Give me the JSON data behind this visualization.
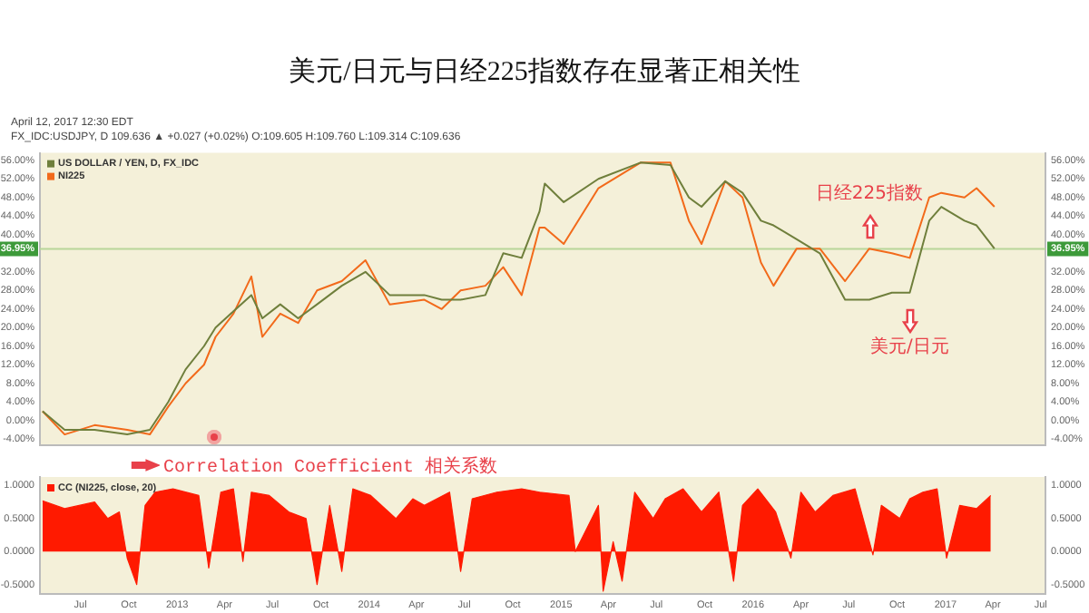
{
  "chart_data": [
    {
      "type": "line",
      "title": "美元/日元与日经225指数存在显著正相关性",
      "subtitle": "April 12, 2017 12:30 EDT",
      "x": [
        "2012-04-20",
        "2012-06-01",
        "2012-07-28",
        "2012-09-28",
        "2012-11-10",
        "2012-12-15",
        "2013-01-17",
        "2013-02-21",
        "2013-03-15",
        "2013-04-18",
        "2013-05-22",
        "2013-06-12",
        "2013-07-16",
        "2013-08-19",
        "2013-09-24",
        "2013-11-10",
        "2013-12-25",
        "2014-02-09",
        "2014-04-16",
        "2014-05-19",
        "2014-06-24",
        "2014-08-10",
        "2014-09-13",
        "2014-10-18",
        "2014-11-21",
        "2014-12-01",
        "2015-01-06",
        "2015-03-13",
        "2015-06-01",
        "2015-07-28",
        "2015-09-01",
        "2015-09-25",
        "2015-11-09",
        "2015-12-12",
        "2016-01-16",
        "2016-02-09",
        "2016-03-24",
        "2016-05-07",
        "2016-06-24",
        "2016-08-09",
        "2016-09-21",
        "2016-10-25",
        "2016-12-01",
        "2016-12-24",
        "2017-02-06",
        "2017-03-01",
        "2017-04-04"
      ],
      "series": [
        {
          "name": "US DOLLAR / YEN, D, FX_IDC",
          "color": "#6f7f3c",
          "values": [
            2,
            -2,
            -2,
            -3,
            -2,
            4,
            11,
            16,
            20,
            23.5,
            27,
            22,
            25,
            22,
            25,
            29,
            32,
            27,
            27,
            26,
            26,
            27,
            36,
            35,
            45,
            51,
            47,
            52,
            55.5,
            55,
            48,
            46,
            51.5,
            49,
            43,
            42,
            39,
            36,
            26,
            26,
            27.5,
            27.5,
            43,
            46,
            43,
            42,
            37
          ]
        },
        {
          "name": "NI225",
          "color": "#f26a1b",
          "values": [
            2,
            -3,
            -1,
            -2,
            -3,
            3,
            8,
            12,
            18,
            23,
            31,
            18,
            23,
            21,
            28,
            30,
            34.5,
            25,
            26,
            24,
            28,
            29,
            33,
            27,
            41.5,
            41.5,
            38,
            50,
            55.5,
            55.5,
            43,
            38,
            51.5,
            48,
            34,
            29,
            37,
            37,
            30,
            37,
            36,
            35,
            48,
            49,
            48,
            50,
            46
          ]
        }
      ],
      "xlim": [
        "2012-04-15",
        "2017-07-10"
      ],
      "ylim": [
        -5.4,
        57.6
      ],
      "yticks": [
        {
          "value": -4,
          "label": "-4.00%"
        },
        {
          "value": 0,
          "label": "0.00%"
        },
        {
          "value": 4,
          "label": "4.00%"
        },
        {
          "value": 8,
          "label": "8.00%"
        },
        {
          "value": 12,
          "label": "12.00%"
        },
        {
          "value": 16,
          "label": "16.00%"
        },
        {
          "value": 20,
          "label": "20.00%"
        },
        {
          "value": 24,
          "label": "24.00%"
        },
        {
          "value": 28,
          "label": "28.00%"
        },
        {
          "value": 32,
          "label": "32.00%"
        },
        {
          "value": 40,
          "label": "40.00%"
        },
        {
          "value": 44,
          "label": "44.00%"
        },
        {
          "value": 48,
          "label": "48.00%"
        },
        {
          "value": 52,
          "label": "52.00%"
        },
        {
          "value": 56,
          "label": "56.00%"
        }
      ],
      "y2lim": [
        -5.4,
        57.6
      ],
      "y2ticks": [
        {
          "value": -4,
          "label": "-4.00%"
        },
        {
          "value": 0,
          "label": "0.00%"
        },
        {
          "value": 4,
          "label": "4.00%"
        },
        {
          "value": 8,
          "label": "8.00%"
        },
        {
          "value": 12,
          "label": "12.00%"
        },
        {
          "value": 16,
          "label": "16.00%"
        },
        {
          "value": 20,
          "label": "20.00%"
        },
        {
          "value": 24,
          "label": "24.00%"
        },
        {
          "value": 28,
          "label": "28.00%"
        },
        {
          "value": 32,
          "label": "32.00%"
        },
        {
          "value": 40,
          "label": "40.00%"
        },
        {
          "value": 44,
          "label": "44.00%"
        },
        {
          "value": 48,
          "label": "48.00%"
        },
        {
          "value": 52,
          "label": "52.00%"
        },
        {
          "value": 56,
          "label": "56.00%"
        }
      ],
      "tick_labels": "y",
      "ref_lines": [
        {
          "axis": "y",
          "value": 36.95,
          "label": "36.95%",
          "color": "#b8d69a"
        }
      ],
      "legend": "top left",
      "annotations": [
        "FX_IDC:USDJPY, D 109.636 ▲ +0.027 (+0.02%) O:109.605 H:109.760 L:109.314 C:109.636",
        {
          "text": "日经225指数",
          "x": "2016-08-09",
          "y": 37
        },
        {
          "text": "美元/日元",
          "x": "2016-10-25",
          "y": 27.5
        }
      ]
    },
    {
      "type": "area",
      "x": [
        "2012-04-20",
        "2012-06-01",
        "2012-07-28",
        "2012-08-22",
        "2012-09-13",
        "2012-09-28",
        "2012-10-16",
        "2012-11-01",
        "2012-11-20",
        "2012-12-24",
        "2013-02-11",
        "2013-03-02",
        "2013-03-25",
        "2013-04-18",
        "2013-05-06",
        "2013-05-22",
        "2013-06-25",
        "2013-08-01",
        "2013-09-03",
        "2013-09-24",
        "2013-10-18",
        "2013-11-10",
        "2013-12-01",
        "2014-01-04",
        "2014-02-21",
        "2014-03-25",
        "2014-04-16",
        "2014-06-03",
        "2014-06-24",
        "2014-07-16",
        "2014-09-01",
        "2014-10-18",
        "2014-11-21",
        "2015-01-16",
        "2015-01-28",
        "2015-02-19",
        "2015-03-13",
        "2015-03-22",
        "2015-04-10",
        "2015-04-27",
        "2015-05-21",
        "2015-06-25",
        "2015-07-18",
        "2015-08-21",
        "2015-09-25",
        "2015-10-28",
        "2015-11-25",
        "2015-12-12",
        "2016-01-10",
        "2016-02-13",
        "2016-03-13",
        "2016-04-01",
        "2016-04-28",
        "2016-06-01",
        "2016-07-13",
        "2016-08-16",
        "2016-09-01",
        "2016-10-06",
        "2016-10-25",
        "2016-11-19",
        "2016-12-16",
        "2017-01-03",
        "2017-01-28",
        "2017-03-01",
        "2017-03-28"
      ],
      "series": [
        {
          "name": "CC (NI225, close, 20)",
          "color": "#ff1a00",
          "values": [
            0.77,
            0.65,
            0.75,
            0.5,
            0.6,
            -0.1,
            -0.5,
            0.7,
            0.9,
            0.95,
            0.85,
            -0.25,
            0.9,
            0.95,
            -0.15,
            0.9,
            0.85,
            0.6,
            0.5,
            -0.5,
            0.7,
            -0.3,
            0.95,
            0.85,
            0.5,
            0.8,
            0.7,
            0.9,
            -0.3,
            0.8,
            0.9,
            0.95,
            0.9,
            0.85,
            0,
            0.35,
            0.7,
            -0.6,
            0.15,
            -0.45,
            0.9,
            0.5,
            0.8,
            0.95,
            0.6,
            0.9,
            -0.45,
            0.7,
            0.95,
            0.6,
            -0.1,
            0.9,
            0.6,
            0.85,
            0.95,
            -0.05,
            0.7,
            0.5,
            0.8,
            0.9,
            0.95,
            -0.1,
            0.7,
            0.65,
            0.85
          ]
        }
      ],
      "xlim": [
        "2012-04-15",
        "2017-07-10"
      ],
      "xticks": [
        {
          "value": "2012-07-01",
          "label": "Jul"
        },
        {
          "value": "2012-10-01",
          "label": "Oct"
        },
        {
          "value": "2013-01-01",
          "label": "2013"
        },
        {
          "value": "2013-04-01",
          "label": "Apr"
        },
        {
          "value": "2013-07-01",
          "label": "Jul"
        },
        {
          "value": "2013-10-01",
          "label": "Oct"
        },
        {
          "value": "2014-01-01",
          "label": "2014"
        },
        {
          "value": "2014-04-01",
          "label": "Apr"
        },
        {
          "value": "2014-07-01",
          "label": "Jul"
        },
        {
          "value": "2014-10-01",
          "label": "Oct"
        },
        {
          "value": "2015-01-01",
          "label": "2015"
        },
        {
          "value": "2015-04-01",
          "label": "Apr"
        },
        {
          "value": "2015-07-01",
          "label": "Jul"
        },
        {
          "value": "2015-10-01",
          "label": "Oct"
        },
        {
          "value": "2016-01-01",
          "label": "2016"
        },
        {
          "value": "2016-04-01",
          "label": "Apr"
        },
        {
          "value": "2016-07-01",
          "label": "Jul"
        },
        {
          "value": "2016-10-01",
          "label": "Oct"
        },
        {
          "value": "2017-01-01",
          "label": "2017"
        },
        {
          "value": "2017-04-01",
          "label": "Apr"
        },
        {
          "value": "2017-07-01",
          "label": "Jul"
        }
      ],
      "ylim": [
        -0.64,
        1.13
      ],
      "yticks": [
        {
          "value": -0.5,
          "label": "-0.5000"
        },
        {
          "value": 0,
          "label": "0.0000"
        },
        {
          "value": 0.5,
          "label": "0.5000"
        },
        {
          "value": 1,
          "label": "1.0000"
        }
      ],
      "y2lim": [
        -0.64,
        1.13
      ],
      "y2ticks": [
        {
          "value": -0.5,
          "label": "-0.5000"
        },
        {
          "value": 0,
          "label": "0.0000"
        },
        {
          "value": 0.5,
          "label": "0.5000"
        },
        {
          "value": 1,
          "label": "1.0000"
        }
      ],
      "legend": "top left",
      "annotations": [
        "Correlation Coefficient 相关系数"
      ]
    }
  ]
}
